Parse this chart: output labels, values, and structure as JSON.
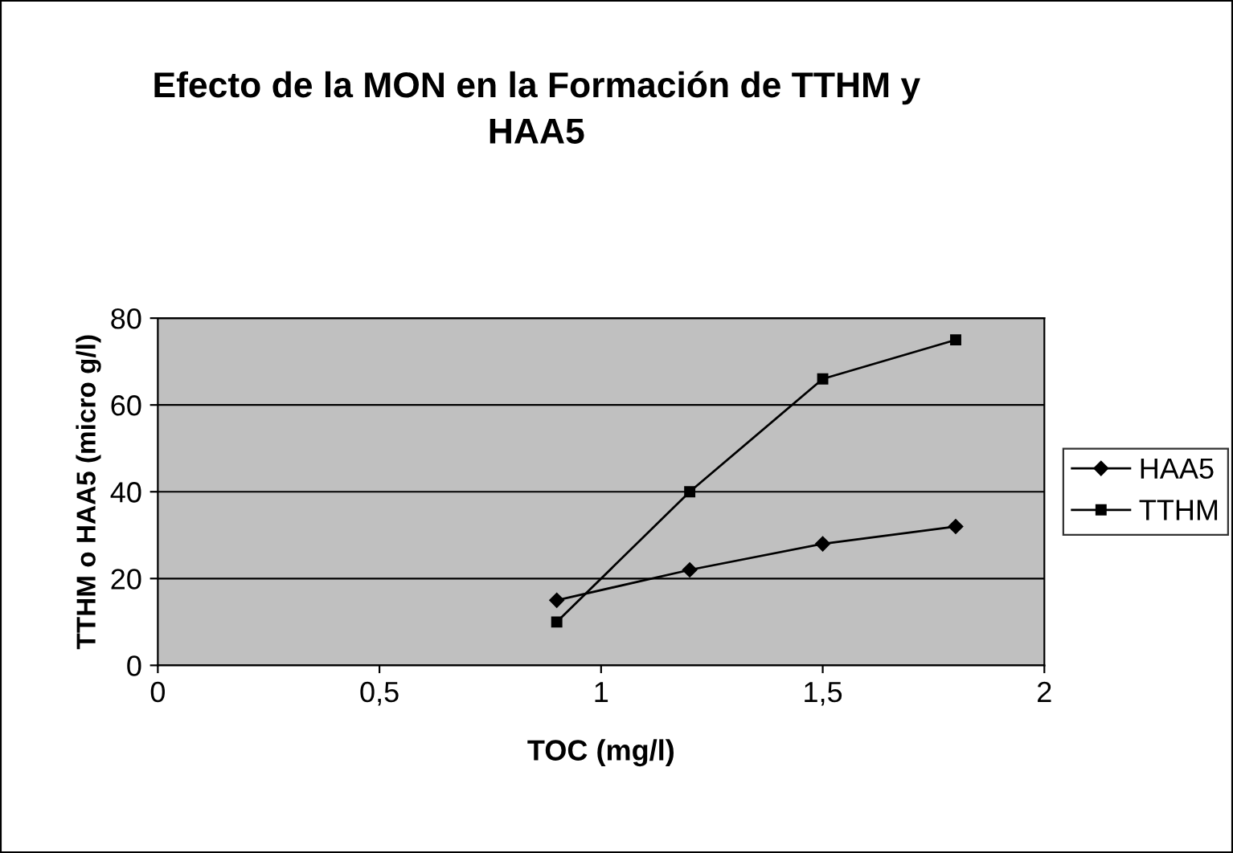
{
  "chart_data": {
    "type": "line",
    "title": "Efecto de la MON en la Formación de TTHM y\nHAA5",
    "xlabel": "TOC (mg/l)",
    "ylabel": "TTHM o HAA5 (micro g/l)",
    "xlim": [
      0,
      2
    ],
    "xticks": [
      0,
      {
        "value": 0.5,
        "label": "0,5"
      },
      1,
      {
        "value": 1.5,
        "label": "1,5"
      },
      2
    ],
    "ylim": [
      0,
      80
    ],
    "yticks": [
      0,
      20,
      40,
      60,
      80
    ],
    "grid": "y",
    "legend": "right",
    "line_style": "solid",
    "series": [
      {
        "name": "HAA5",
        "color": "#000000",
        "marker": "diamond",
        "x": [
          0.9,
          1.2,
          1.5,
          1.8
        ],
        "values": [
          15,
          22,
          28,
          32
        ]
      },
      {
        "name": "TTHM",
        "color": "#000000",
        "marker": "square",
        "x": [
          0.9,
          1.2,
          1.5,
          1.8
        ],
        "values": [
          10,
          40,
          66,
          75
        ]
      }
    ]
  }
}
